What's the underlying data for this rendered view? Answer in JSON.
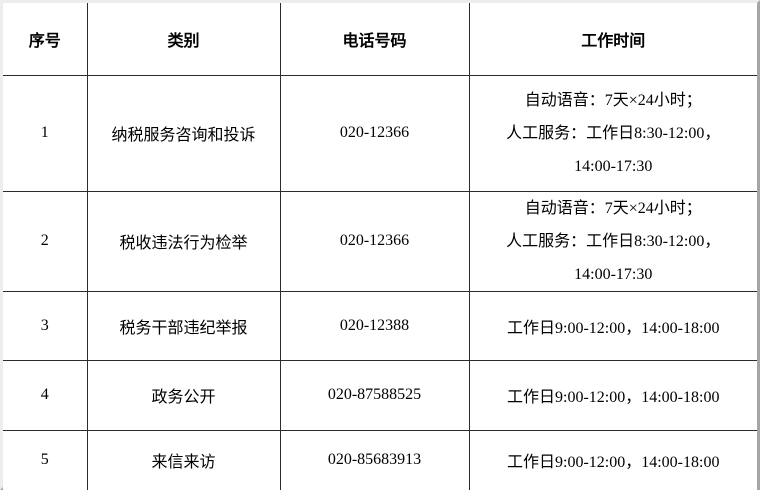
{
  "colors": {
    "background": "#ffffff",
    "grid_line": "#2b2b2b",
    "frame_light": "#ededed",
    "frame_shadow": "#a6a6a6",
    "text": "#000000"
  },
  "table": {
    "headers": [
      "序号",
      "类别",
      "电话号码",
      "工作时间"
    ],
    "rows": [
      {
        "no": "1",
        "category": "纳税服务咨询和投诉",
        "phone": "020-12366",
        "hours": [
          "自动语音：7天×24小时；",
          "人工服务：工作日8:30-12:00，",
          "14:00-17:30"
        ]
      },
      {
        "no": "2",
        "category": "税收违法行为检举",
        "phone": "020-12366",
        "hours": [
          "自动语音：7天×24小时；",
          "人工服务：工作日8:30-12:00，",
          "14:00-17:30"
        ]
      },
      {
        "no": "3",
        "category": "税务干部违纪举报",
        "phone": "020-12388",
        "hours": [
          "工作日9:00-12:00，14:00-18:00"
        ]
      },
      {
        "no": "4",
        "category": "政务公开",
        "phone": "020-87588525",
        "hours": [
          "工作日9:00-12:00，14:00-18:00"
        ]
      },
      {
        "no": "5",
        "category": "来信来访",
        "phone": "020-85683913",
        "hours": [
          "工作日9:00-12:00，14:00-18:00"
        ]
      }
    ]
  }
}
